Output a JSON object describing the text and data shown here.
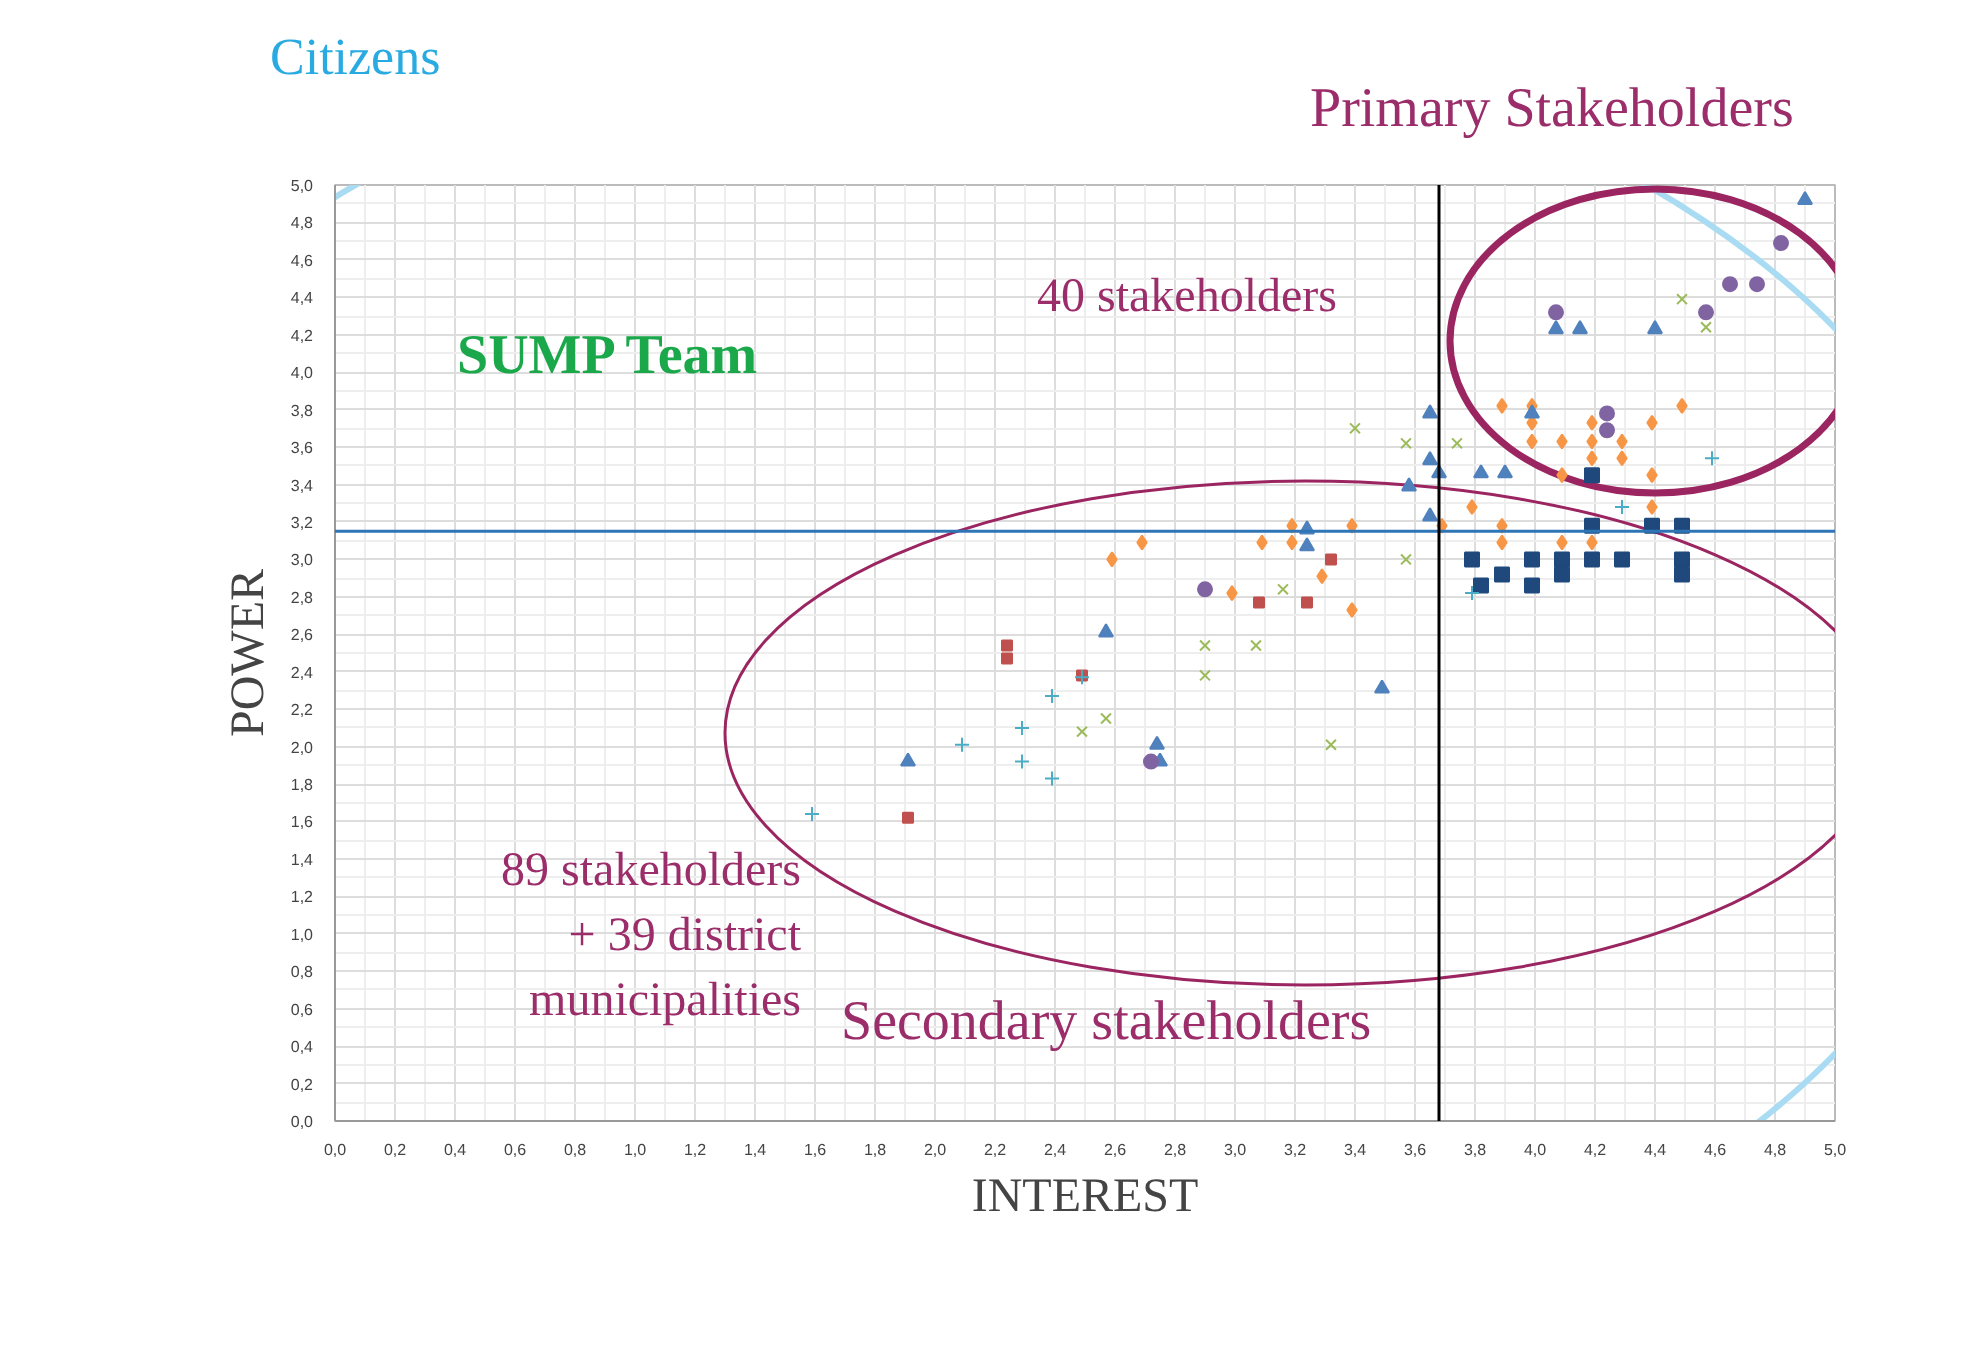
{
  "chart_data": {
    "type": "scatter",
    "xlabel": "INTEREST",
    "ylabel": "POWER",
    "annotations": [
      "Citizens",
      "Primary Stakeholders",
      "40 stakeholders",
      "SUMP Team",
      "89 stakeholders\n+ 39 district\nmunicipalities",
      "Secondary stakeholders"
    ],
    "xlim": [
      0,
      5
    ],
    "ylim": [
      0,
      5
    ],
    "xticks": [
      {
        "value": 0,
        "label": "0,0"
      },
      {
        "value": 0.2,
        "label": "0,2"
      },
      {
        "value": 0.4,
        "label": "0,4"
      },
      {
        "value": 0.6,
        "label": "0,6"
      },
      {
        "value": 0.8,
        "label": "0,8"
      },
      {
        "value": 1.0,
        "label": "1,0"
      },
      {
        "value": 1.2,
        "label": "1,2"
      },
      {
        "value": 1.4,
        "label": "1,4"
      },
      {
        "value": 1.6,
        "label": "1,6"
      },
      {
        "value": 1.8,
        "label": "1,8"
      },
      {
        "value": 2.0,
        "label": "2,0"
      },
      {
        "value": 2.2,
        "label": "2,2"
      },
      {
        "value": 2.4,
        "label": "2,4"
      },
      {
        "value": 2.6,
        "label": "2,6"
      },
      {
        "value": 2.8,
        "label": "2,8"
      },
      {
        "value": 3.0,
        "label": "3,0"
      },
      {
        "value": 3.2,
        "label": "3,2"
      },
      {
        "value": 3.4,
        "label": "3,4"
      },
      {
        "value": 3.6,
        "label": "3,6"
      },
      {
        "value": 3.8,
        "label": "3,8"
      },
      {
        "value": 4.0,
        "label": "4,0"
      },
      {
        "value": 4.2,
        "label": "4,2"
      },
      {
        "value": 4.4,
        "label": "4,4"
      },
      {
        "value": 4.6,
        "label": "4,6"
      },
      {
        "value": 4.8,
        "label": "4,8"
      },
      {
        "value": 5.0,
        "label": "5,0"
      }
    ],
    "yticks": [
      {
        "value": 0,
        "label": "0,0"
      },
      {
        "value": 0.2,
        "label": "0,2"
      },
      {
        "value": 0.4,
        "label": "0,4"
      },
      {
        "value": 0.6,
        "label": "0,6"
      },
      {
        "value": 0.8,
        "label": "0,8"
      },
      {
        "value": 1.0,
        "label": "1,0"
      },
      {
        "value": 1.2,
        "label": "1,2"
      },
      {
        "value": 1.4,
        "label": "1,4"
      },
      {
        "value": 1.6,
        "label": "1,6"
      },
      {
        "value": 1.8,
        "label": "1,8"
      },
      {
        "value": 2.0,
        "label": "2,0"
      },
      {
        "value": 2.2,
        "label": "2,2"
      },
      {
        "value": 2.4,
        "label": "2,4"
      },
      {
        "value": 2.6,
        "label": "2,6"
      },
      {
        "value": 2.8,
        "label": "2,8"
      },
      {
        "value": 3.0,
        "label": "3,0"
      },
      {
        "value": 3.2,
        "label": "3,2"
      },
      {
        "value": 3.4,
        "label": "3,4"
      },
      {
        "value": 3.6,
        "label": "3,6"
      },
      {
        "value": 3.8,
        "label": "3,8"
      },
      {
        "value": 4.0,
        "label": "4,0"
      },
      {
        "value": 4.2,
        "label": "4,2"
      },
      {
        "value": 4.4,
        "label": "4,4"
      },
      {
        "value": 4.6,
        "label": "4,6"
      },
      {
        "value": 4.8,
        "label": "4,8"
      },
      {
        "value": 5.0,
        "label": "5,0"
      }
    ],
    "grid": true,
    "ref_lines": [
      {
        "axis": "y",
        "value": 3.15,
        "color": "#2e75b6"
      },
      {
        "axis": "x",
        "value": 3.68,
        "color": "#000000"
      }
    ],
    "series": [
      {
        "color": "#f79646",
        "marker": "diamond",
        "x": [
          3.19,
          3.39,
          3.69,
          2.69,
          3.09,
          3.19,
          2.59,
          2.99,
          3.29,
          3.39,
          3.89,
          3.99,
          4.49,
          3.99,
          4.19,
          4.39,
          3.99,
          4.09,
          4.19,
          4.29,
          4.19,
          4.29,
          4.09,
          4.39,
          3.79,
          4.39,
          3.89,
          3.89,
          4.09,
          4.19
        ],
        "values": [
          3.18,
          3.18,
          3.18,
          3.09,
          3.09,
          3.09,
          3.0,
          2.82,
          2.91,
          2.73,
          3.82,
          3.82,
          3.82,
          3.73,
          3.73,
          3.73,
          3.63,
          3.63,
          3.63,
          3.63,
          3.54,
          3.54,
          3.45,
          3.45,
          3.28,
          3.28,
          3.18,
          3.09,
          3.09,
          3.09
        ]
      },
      {
        "color": "#4f81bd",
        "marker": "triangle",
        "x": [
          3.65,
          3.24,
          3.24,
          2.57,
          3.49,
          2.74,
          2.75,
          1.91,
          4.9,
          4.07,
          4.15,
          4.4,
          3.99,
          3.65,
          3.65,
          3.68,
          3.82,
          3.9,
          3.58
        ],
        "values": [
          3.23,
          3.16,
          3.07,
          2.61,
          2.31,
          2.01,
          1.92,
          1.92,
          4.92,
          4.23,
          4.23,
          4.23,
          3.78,
          3.78,
          3.53,
          3.46,
          3.46,
          3.46,
          3.39
        ]
      },
      {
        "color": "#1f497d",
        "marker": "square",
        "x": [
          4.19,
          4.19,
          4.39,
          4.49,
          3.79,
          3.99,
          4.09,
          4.19,
          4.29,
          4.49,
          3.89,
          3.82,
          3.99,
          4.09,
          4.49
        ],
        "values": [
          3.45,
          3.18,
          3.18,
          3.18,
          3.0,
          3.0,
          3.0,
          3.0,
          3.0,
          3.0,
          2.92,
          2.86,
          2.86,
          2.92,
          2.92
        ]
      },
      {
        "color": "#8064a2",
        "marker": "circle",
        "x": [
          2.9,
          2.72,
          4.82,
          4.65,
          4.74,
          4.57,
          4.07,
          4.24,
          4.24
        ],
        "values": [
          2.84,
          1.92,
          4.69,
          4.47,
          4.47,
          4.32,
          4.32,
          3.78,
          3.69
        ]
      },
      {
        "color": "#9bbb59",
        "marker": "x",
        "x": [
          3.57,
          3.16,
          2.9,
          3.07,
          2.9,
          2.57,
          2.49,
          3.32,
          4.49,
          4.57,
          3.57,
          3.74,
          3.4
        ],
        "values": [
          3.0,
          2.84,
          2.54,
          2.54,
          2.38,
          2.15,
          2.08,
          2.01,
          4.39,
          4.24,
          3.62,
          3.62,
          3.7
        ]
      },
      {
        "color": "#c0504d",
        "marker": "square",
        "x": [
          3.32,
          3.08,
          3.24,
          2.24,
          2.24,
          2.49,
          1.91
        ],
        "values": [
          3.0,
          2.77,
          2.77,
          2.54,
          2.47,
          2.38,
          1.62
        ]
      },
      {
        "color": "#4bacc6",
        "marker": "cross",
        "x": [
          2.49,
          2.39,
          2.29,
          2.09,
          2.29,
          2.39,
          1.59,
          4.59,
          4.29,
          3.79
        ],
        "values": [
          2.37,
          2.27,
          2.1,
          2.01,
          1.92,
          1.83,
          1.64,
          3.54,
          3.28,
          2.82
        ]
      }
    ]
  }
}
